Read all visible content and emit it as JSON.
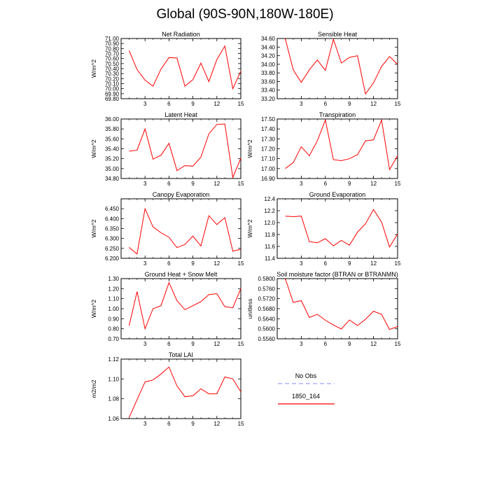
{
  "figure": {
    "title": "Global (90S-90N,180W-180E)",
    "line_color": "#ff0000",
    "obs_color": "#9aa0ff"
  },
  "legend": {
    "entries": [
      {
        "label": "No Obs",
        "style": "dashed",
        "color": "#9aa0ff"
      },
      {
        "label": "1850_164",
        "style": "solid",
        "color": "#ff0000"
      }
    ]
  },
  "chart_data": [
    {
      "type": "line",
      "title": "Net Radiation",
      "ylabel": "W/m^2",
      "xlim": [
        0,
        15
      ],
      "xticks": [
        3,
        6,
        9,
        12,
        15
      ],
      "ylim": [
        69.8,
        71.0
      ],
      "yticks": [
        "69.80",
        "69.90",
        "70.00",
        "70.10",
        "70.20",
        "70.30",
        "70.40",
        "70.50",
        "70.60",
        "70.70",
        "70.80",
        "70.90",
        "71.00"
      ],
      "series": [
        {
          "name": "1850_164",
          "x": [
            1,
            2,
            3,
            4,
            5,
            6,
            7,
            8,
            9,
            10,
            11,
            12,
            13,
            14,
            15
          ],
          "values": [
            70.76,
            70.38,
            70.17,
            70.05,
            70.39,
            70.62,
            70.61,
            70.05,
            70.18,
            70.51,
            70.14,
            70.58,
            70.85,
            70.0,
            70.35
          ]
        }
      ]
    },
    {
      "type": "line",
      "title": "Sensible Heat",
      "ylabel": "",
      "xlim": [
        0,
        15
      ],
      "xticks": [
        3,
        6,
        9,
        12,
        15
      ],
      "ylim": [
        33.2,
        34.6
      ],
      "yticks": [
        "33.20",
        "33.40",
        "33.60",
        "33.80",
        "34.00",
        "34.20",
        "34.40",
        "34.60"
      ],
      "series": [
        {
          "name": "1850_164",
          "x": [
            1,
            2,
            3,
            4,
            5,
            6,
            7,
            8,
            9,
            10,
            11,
            12,
            13,
            14,
            15
          ],
          "values": [
            34.6,
            33.87,
            33.58,
            33.87,
            34.1,
            33.86,
            34.58,
            34.03,
            34.16,
            34.2,
            33.31,
            33.57,
            33.95,
            34.18,
            34.0
          ]
        }
      ]
    },
    {
      "type": "line",
      "title": "Latent Heat",
      "ylabel": "W/m^2",
      "xlim": [
        0,
        15
      ],
      "xticks": [
        3,
        6,
        9,
        12,
        15
      ],
      "ylim": [
        34.8,
        36.0
      ],
      "yticks": [
        "34.80",
        "35.00",
        "35.20",
        "35.40",
        "35.60",
        "35.80",
        "36.00"
      ],
      "series": [
        {
          "name": "1850_164",
          "x": [
            1,
            2,
            3,
            4,
            5,
            6,
            7,
            8,
            9,
            10,
            11,
            12,
            13,
            14,
            15
          ],
          "values": [
            35.35,
            35.37,
            35.8,
            35.19,
            35.27,
            35.51,
            34.96,
            35.06,
            35.05,
            35.23,
            35.7,
            35.89,
            35.9,
            34.82,
            35.21
          ]
        }
      ]
    },
    {
      "type": "line",
      "title": "Transpiration",
      "ylabel": "W/m^2",
      "xlim": [
        0,
        15
      ],
      "xticks": [
        3,
        6,
        9,
        12,
        15
      ],
      "ylim": [
        16.9,
        17.5
      ],
      "yticks": [
        "16.90",
        "17.00",
        "17.10",
        "17.20",
        "17.30",
        "17.40",
        "17.50"
      ],
      "series": [
        {
          "name": "1850_164",
          "x": [
            1,
            2,
            3,
            4,
            5,
            6,
            7,
            8,
            9,
            10,
            11,
            12,
            13,
            14,
            15
          ],
          "values": [
            17.0,
            17.06,
            17.22,
            17.13,
            17.28,
            17.49,
            17.09,
            17.08,
            17.1,
            17.14,
            17.28,
            17.29,
            17.49,
            16.99,
            17.13
          ]
        }
      ]
    },
    {
      "type": "line",
      "title": "Canopy Evaporation",
      "ylabel": "W/m^2",
      "xlim": [
        0,
        15
      ],
      "xticks": [
        3,
        6,
        9,
        12,
        15
      ],
      "ylim": [
        6.2,
        6.5
      ],
      "yticks": [
        "6.200",
        "6.250",
        "6.300",
        "6.350",
        "6.400",
        "6.450"
      ],
      "series": [
        {
          "name": "1850_164",
          "x": [
            1,
            2,
            3,
            4,
            5,
            6,
            7,
            8,
            9,
            10,
            11,
            12,
            13,
            14,
            15
          ],
          "values": [
            6.255,
            6.222,
            6.45,
            6.358,
            6.329,
            6.306,
            6.254,
            6.27,
            6.312,
            6.262,
            6.415,
            6.37,
            6.405,
            6.236,
            6.245
          ]
        }
      ]
    },
    {
      "type": "line",
      "title": "Ground Evaporation",
      "ylabel": "W/m^2",
      "xlim": [
        0,
        15
      ],
      "xticks": [
        3,
        6,
        9,
        12,
        15
      ],
      "ylim": [
        11.4,
        12.4
      ],
      "yticks": [
        "11.4",
        "11.6",
        "11.8",
        "12.0",
        "12.2",
        "12.4"
      ],
      "series": [
        {
          "name": "1850_164",
          "x": [
            1,
            2,
            3,
            4,
            5,
            6,
            7,
            8,
            9,
            10,
            11,
            12,
            13,
            14,
            15
          ],
          "values": [
            12.11,
            12.1,
            12.11,
            11.68,
            11.66,
            11.73,
            11.61,
            11.7,
            11.62,
            11.84,
            11.98,
            12.22,
            12.01,
            11.59,
            11.81
          ]
        }
      ]
    },
    {
      "type": "line",
      "title": "Ground Heat + Snow Melt",
      "ylabel": "W/m^2",
      "xlim": [
        0,
        15
      ],
      "xticks": [
        3,
        6,
        9,
        12,
        15
      ],
      "ylim": [
        0.7,
        1.3
      ],
      "yticks": [
        "0.70",
        "0.80",
        "0.90",
        "1.00",
        "1.10",
        "1.20",
        "1.30"
      ],
      "series": [
        {
          "name": "1850_164",
          "x": [
            1,
            2,
            3,
            4,
            5,
            6,
            7,
            8,
            9,
            10,
            11,
            12,
            13,
            14,
            15
          ],
          "values": [
            0.83,
            1.17,
            0.8,
            1.0,
            1.03,
            1.26,
            1.08,
            0.99,
            1.03,
            1.07,
            1.14,
            1.15,
            1.02,
            1.01,
            1.2
          ]
        }
      ]
    },
    {
      "type": "line",
      "title": "Soil moisture factor (BTRAN or BTRANMN)",
      "ylabel": "unitless",
      "xlim": [
        0,
        15
      ],
      "xticks": [
        3,
        6,
        9,
        12,
        15
      ],
      "ylim": [
        0.556,
        0.58
      ],
      "yticks": [
        "0.5560",
        "0.5600",
        "0.5640",
        "0.5680",
        "0.5720",
        "0.5760",
        "0.5800"
      ],
      "series": [
        {
          "name": "1850_164",
          "x": [
            1,
            2,
            3,
            4,
            5,
            6,
            7,
            8,
            9,
            10,
            11,
            12,
            13,
            14,
            15
          ],
          "values": [
            0.58,
            0.5705,
            0.5712,
            0.5645,
            0.5658,
            0.5634,
            0.5615,
            0.5599,
            0.5635,
            0.5613,
            0.5638,
            0.567,
            0.5657,
            0.5597,
            0.5609
          ]
        }
      ]
    },
    {
      "type": "line",
      "title": "Total LAI",
      "ylabel": "m2/m2",
      "xlim": [
        0,
        15
      ],
      "xticks": [
        3,
        6,
        9,
        12,
        15
      ],
      "ylim": [
        1.06,
        1.12
      ],
      "yticks": [
        "1.06",
        "1.08",
        "1.10",
        "1.12"
      ],
      "series": [
        {
          "name": "1850_164",
          "x": [
            1,
            2,
            3,
            4,
            5,
            6,
            7,
            8,
            9,
            10,
            11,
            12,
            13,
            14,
            15
          ],
          "values": [
            1.061,
            1.079,
            1.097,
            1.099,
            1.105,
            1.112,
            1.093,
            1.082,
            1.083,
            1.09,
            1.085,
            1.085,
            1.102,
            1.1,
            1.087
          ]
        }
      ]
    }
  ]
}
